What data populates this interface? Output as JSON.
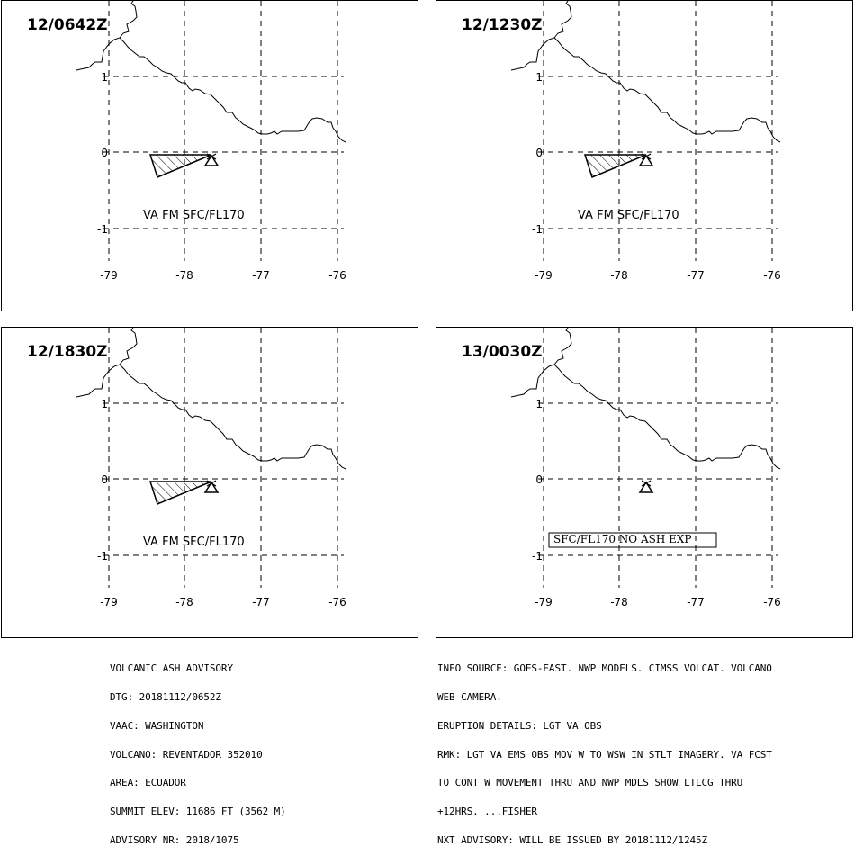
{
  "panels": [
    {
      "time": "12/0642Z",
      "ash": true,
      "annotation": "VA FM SFC/FL170",
      "boxed": false
    },
    {
      "time": "12/1230Z",
      "ash": true,
      "annotation": "VA FM SFC/FL170",
      "boxed": false
    },
    {
      "time": "12/1830Z",
      "ash": true,
      "annotation": "VA FM SFC/FL170",
      "boxed": false
    },
    {
      "time": "13/0030Z",
      "ash": false,
      "annotation": "SFC/FL170 NO ASH EXP",
      "boxed": true
    }
  ],
  "axes": {
    "lon_ticks": [
      "-79",
      "-78",
      "-77",
      "-76"
    ],
    "lat_ticks": [
      "1",
      "0",
      "-1"
    ]
  },
  "volcano_icon": "volcano-triangle-icon",
  "advisory_left": [
    "VOLCANIC ASH ADVISORY",
    "DTG: 20181112/0652Z",
    "VAAC: WASHINGTON",
    "VOLCANO: REVENTADOR 352010",
    "AREA: ECUADOR",
    "SUMMIT ELEV: 11686 FT (3562 M)",
    "ADVISORY NR: 2018/1075"
  ],
  "advisory_right": [
    "INFO SOURCE: GOES-EAST. NWP MODELS. CIMSS VOLCAT. VOLCANO",
    "WEB CAMERA.",
    "ERUPTION DETAILS: LGT VA OBS",
    "RMK: LGT VA EMS OBS MOV W TO WSW IN STLT IMAGERY. VA FCST",
    "TO CONT W MOVEMENT THRU AND NWP MDLS SHOW LTLCG THRU",
    "+12HRS. ...FISHER",
    "NXT ADVISORY: WILL BE ISSUED BY 20181112/1245Z"
  ]
}
